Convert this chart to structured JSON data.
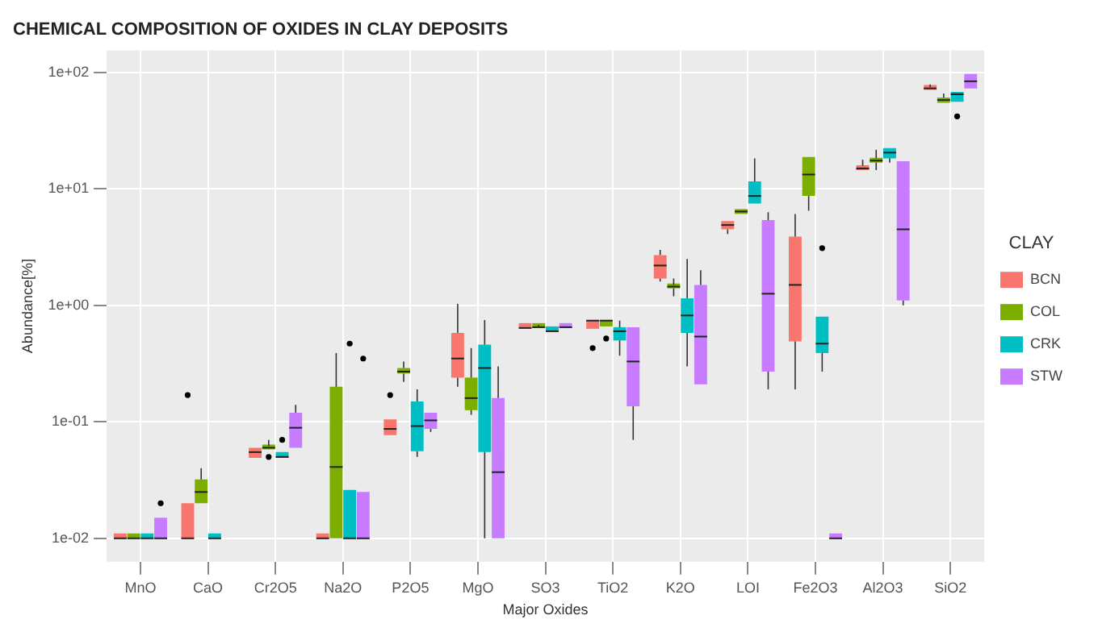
{
  "chart_data": {
    "type": "box",
    "title": "CHEMICAL COMPOSITION OF OXIDES IN CLAY DEPOSITS",
    "xlabel": "Major Oxides",
    "ylabel": "Abundance[%]",
    "legend_title": "CLAY",
    "legend": "right",
    "grid": true,
    "log": "y",
    "categories": [
      "MnO",
      "CaO",
      "Cr2O5",
      "Na2O",
      "P2O5",
      "MgO",
      "SO3",
      "TiO2",
      "K2O",
      "LOI",
      "Fe2O3",
      "Al2O3",
      "SiO2"
    ],
    "ylim": [
      0.0063,
      155
    ],
    "yticks": [
      {
        "value": 0.01,
        "label": "1e-02"
      },
      {
        "value": 0.1,
        "label": "1e-01"
      },
      {
        "value": 1,
        "label": "1e+00"
      },
      {
        "value": 10,
        "label": "1e+01"
      },
      {
        "value": 100,
        "label": "1e+02"
      }
    ],
    "series": [
      {
        "name": "BCN",
        "color": "#f8766d",
        "boxes": [
          {
            "low": 0.01,
            "q1": 0.01,
            "median": 0.01,
            "q3": 0.01,
            "high": 0.01
          },
          {
            "low": 0.01,
            "q1": 0.01,
            "median": 0.01,
            "q3": 0.02,
            "high": 0.02,
            "outliers": [
              0.17
            ]
          },
          {
            "low": 0.049,
            "q1": 0.049,
            "median": 0.055,
            "q3": 0.06,
            "high": 0.06
          },
          {
            "low": 0.01,
            "q1": 0.01,
            "median": 0.01,
            "q3": 0.01,
            "high": 0.01
          },
          {
            "low": 0.077,
            "q1": 0.077,
            "median": 0.087,
            "q3": 0.105,
            "high": 0.105,
            "outliers": [
              0.17
            ]
          },
          {
            "low": 0.2,
            "q1": 0.24,
            "median": 0.35,
            "q3": 0.58,
            "high": 1.03
          },
          {
            "low": 0.64,
            "q1": 0.64,
            "median": 0.64,
            "q3": 0.64,
            "high": 0.64
          },
          {
            "low": 0.63,
            "q1": 0.63,
            "median": 0.74,
            "q3": 0.75,
            "high": 0.75,
            "outliers": [
              0.43
            ]
          },
          {
            "low": 1.6,
            "q1": 1.7,
            "median": 2.2,
            "q3": 2.7,
            "high": 3
          },
          {
            "low": 4.1,
            "q1": 4.5,
            "median": 4.9,
            "q3": 5.3,
            "high": 5.3
          },
          {
            "low": 0.19,
            "q1": 0.49,
            "median": 1.5,
            "q3": 3.9,
            "high": 6.1
          },
          {
            "low": 14.5,
            "q1": 14.5,
            "median": 15,
            "q3": 15.8,
            "high": 17.8
          },
          {
            "low": 71,
            "q1": 71,
            "median": 73,
            "q3": 75,
            "high": 79
          }
        ]
      },
      {
        "name": "COL",
        "color": "#7cae00",
        "boxes": [
          {
            "low": 0.01,
            "q1": 0.01,
            "median": 0.01,
            "q3": 0.01,
            "high": 0.01
          },
          {
            "low": 0.02,
            "q1": 0.02,
            "median": 0.025,
            "q3": 0.032,
            "high": 0.04
          },
          {
            "low": 0.058,
            "q1": 0.058,
            "median": 0.06,
            "q3": 0.062,
            "high": 0.07,
            "outliers": [
              0.05
            ]
          },
          {
            "low": 0.01,
            "q1": 0.01,
            "median": 0.041,
            "q3": 0.2,
            "high": 0.39
          },
          {
            "low": 0.22,
            "q1": 0.26,
            "median": 0.27,
            "q3": 0.29,
            "high": 0.33
          },
          {
            "low": 0.115,
            "q1": 0.126,
            "median": 0.16,
            "q3": 0.24,
            "high": 0.43
          },
          {
            "low": 0.64,
            "q1": 0.64,
            "median": 0.65,
            "q3": 0.66,
            "high": 0.68
          },
          {
            "low": 0.66,
            "q1": 0.66,
            "median": 0.74,
            "q3": 0.75,
            "high": 0.75,
            "outliers": [
              0.52
            ]
          },
          {
            "low": 1.2,
            "q1": 1.4,
            "median": 1.45,
            "q3": 1.5,
            "high": 1.7
          },
          {
            "low": 6.1,
            "q1": 6.1,
            "median": 6.4,
            "q3": 6.7,
            "high": 6.7
          },
          {
            "low": 6.5,
            "q1": 8.7,
            "median": 13.3,
            "q3": 18.8,
            "high": 18.8
          },
          {
            "low": 14.5,
            "q1": 16.8,
            "median": 17.5,
            "q3": 18.3,
            "high": 21.7
          },
          {
            "low": 55,
            "q1": 55,
            "median": 58,
            "q3": 61,
            "high": 66
          }
        ]
      },
      {
        "name": "CRK",
        "color": "#00bfc4",
        "boxes": [
          {
            "low": 0.01,
            "q1": 0.01,
            "median": 0.01,
            "q3": 0.01,
            "high": 0.01
          },
          {
            "low": 0.01,
            "q1": 0.01,
            "median": 0.01,
            "q3": 0.01,
            "high": 0.01
          },
          {
            "low": 0.049,
            "q1": 0.049,
            "median": 0.05,
            "q3": 0.055,
            "high": 0.055,
            "outliers": [
              0.07
            ]
          },
          {
            "low": 0.01,
            "q1": 0.01,
            "median": 0.01,
            "q3": 0.026,
            "high": 0.026,
            "outliers": [
              0.47
            ]
          },
          {
            "low": 0.05,
            "q1": 0.056,
            "median": 0.092,
            "q3": 0.15,
            "high": 0.19
          },
          {
            "low": 0.01,
            "q1": 0.055,
            "median": 0.29,
            "q3": 0.46,
            "high": 0.75
          },
          {
            "low": 0.6,
            "q1": 0.6,
            "median": 0.6,
            "q3": 0.6,
            "high": 0.6
          },
          {
            "low": 0.37,
            "q1": 0.5,
            "median": 0.6,
            "q3": 0.65,
            "high": 0.74
          },
          {
            "low": 0.3,
            "q1": 0.58,
            "median": 0.82,
            "q3": 1.15,
            "high": 2.5
          },
          {
            "low": 7.5,
            "q1": 7.5,
            "median": 8.7,
            "q3": 11.6,
            "high": 18.3
          },
          {
            "low": 0.27,
            "q1": 0.39,
            "median": 0.47,
            "q3": 0.8,
            "high": 0.8,
            "outliers": [
              3.1
            ]
          },
          {
            "low": 16.8,
            "q1": 18.3,
            "median": 20.5,
            "q3": 22.4,
            "high": 22.4
          },
          {
            "low": 56,
            "q1": 56,
            "median": 65,
            "q3": 68,
            "high": 68,
            "outliers": [
              42
            ]
          }
        ]
      },
      {
        "name": "STW",
        "color": "#c77cff",
        "boxes": [
          {
            "low": 0.01,
            "q1": 0.01,
            "median": 0.01,
            "q3": 0.015,
            "high": 0.015,
            "outliers": [
              0.02
            ]
          },
          null,
          {
            "low": 0.06,
            "q1": 0.06,
            "median": 0.089,
            "q3": 0.12,
            "high": 0.14
          },
          {
            "low": 0.01,
            "q1": 0.01,
            "median": 0.01,
            "q3": 0.025,
            "high": 0.025,
            "outliers": [
              0.35
            ]
          },
          {
            "low": 0.082,
            "q1": 0.087,
            "median": 0.103,
            "q3": 0.12,
            "high": 0.12
          },
          {
            "low": 0.01,
            "q1": 0.01,
            "median": 0.037,
            "q3": 0.16,
            "high": 0.3
          },
          {
            "low": 0.64,
            "q1": 0.64,
            "median": 0.65,
            "q3": 0.67,
            "high": 0.67
          },
          {
            "low": 0.07,
            "q1": 0.136,
            "median": 0.33,
            "q3": 0.65,
            "high": 0.65
          },
          {
            "low": 0.21,
            "q1": 0.21,
            "median": 0.54,
            "q3": 1.5,
            "high": 2
          },
          {
            "low": 0.19,
            "q1": 0.27,
            "median": 1.26,
            "q3": 5.4,
            "high": 6.3
          },
          {
            "low": 0.01,
            "q1": 0.01,
            "median": 0.01,
            "q3": 0.01,
            "high": 0.01
          },
          {
            "low": 1,
            "q1": 1.1,
            "median": 4.5,
            "q3": 17.3,
            "high": 17.3
          },
          {
            "low": 73,
            "q1": 73,
            "median": 84,
            "q3": 97,
            "high": 97
          }
        ]
      }
    ]
  }
}
